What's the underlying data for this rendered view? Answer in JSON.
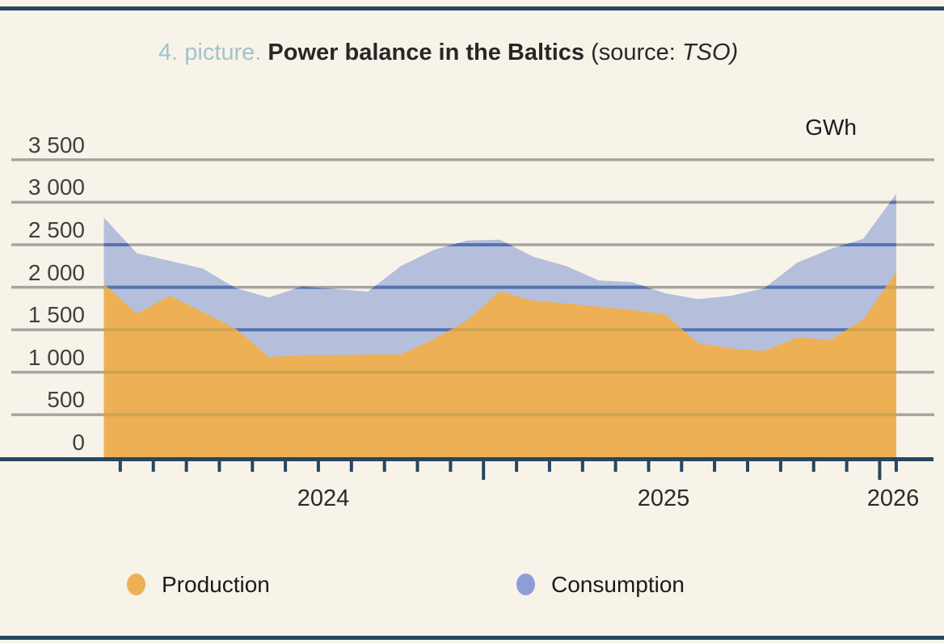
{
  "title": {
    "prefix": "4. picture.",
    "main": "Power balance in the Baltics",
    "source_open": "(source:",
    "source_name": "TSO)"
  },
  "unit_label": "GWh",
  "y_axis_labels": [
    "0",
    "500",
    "1 000",
    "1 500",
    "2 000",
    "2 500",
    "3 000",
    "3 500"
  ],
  "legend": [
    {
      "label": "Production",
      "color": "#eeb057"
    },
    {
      "label": "Consumption",
      "color": "#8e9dd8"
    }
  ],
  "colors": {
    "background": "#f8f3e9",
    "navy_axis": "#27465f",
    "gridline_gray": "#a7a5a1",
    "production_fill": "#edb055",
    "consumption_fill": "#b5bfdc",
    "gridline_over_consumption": "#5673b1",
    "gridline_over_production": "#d0a451"
  },
  "chart_data": {
    "type": "area",
    "title": "Power balance in the Baltics",
    "unit": "GWh",
    "ylim": [
      0,
      3500
    ],
    "ytick_step": 500,
    "grid": true,
    "legend_position": "bottom",
    "x": [
      "2024-01",
      "2024-02",
      "2024-03",
      "2024-04",
      "2024-05",
      "2024-06",
      "2024-07",
      "2024-08",
      "2024-09",
      "2024-10",
      "2024-11",
      "2024-12",
      "2025-01",
      "2025-02",
      "2025-03",
      "2025-04",
      "2025-05",
      "2025-06",
      "2025-07",
      "2025-08",
      "2025-09",
      "2025-10",
      "2025-11",
      "2025-12",
      "2026-01"
    ],
    "year_labels": [
      "2024",
      "2025",
      "2026"
    ],
    "series": [
      {
        "name": "Production",
        "values": [
          2040,
          1690,
          1900,
          1710,
          1510,
          1180,
          1200,
          1200,
          1210,
          1210,
          1390,
          1610,
          1950,
          1840,
          1810,
          1770,
          1730,
          1680,
          1340,
          1280,
          1250,
          1410,
          1380,
          1620,
          2180
        ]
      },
      {
        "name": "Consumption",
        "values": [
          2820,
          2400,
          2310,
          2220,
          1990,
          1880,
          2010,
          1980,
          1950,
          2250,
          2440,
          2550,
          2560,
          2360,
          2250,
          2080,
          2060,
          1930,
          1860,
          1900,
          1990,
          2290,
          2450,
          2570,
          3100
        ]
      }
    ]
  }
}
